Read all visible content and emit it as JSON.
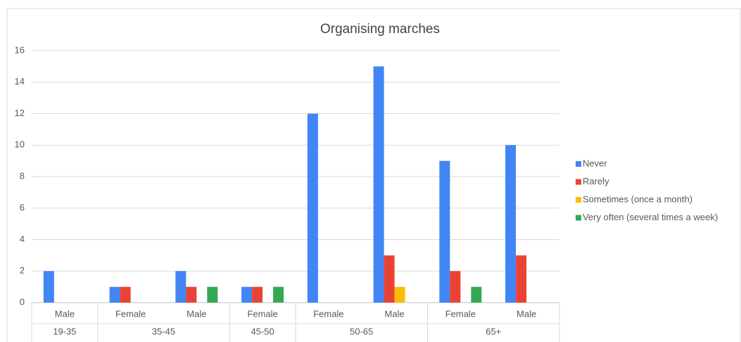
{
  "chart_data": {
    "type": "bar",
    "title": "Organising marches",
    "categories": [
      "Male",
      "Female",
      "Male",
      "Female",
      "Female",
      "Male",
      "Female",
      "Male"
    ],
    "groups": [
      {
        "name": "19-35",
        "count": 1
      },
      {
        "name": "35-45",
        "count": 2
      },
      {
        "name": "45-50",
        "count": 1
      },
      {
        "name": "50-65",
        "count": 2
      },
      {
        "name": "65+",
        "count": 2
      }
    ],
    "series": [
      {
        "name": "Never",
        "color": "#4285f4",
        "values": [
          2,
          1,
          2,
          1,
          12,
          15,
          9,
          10
        ]
      },
      {
        "name": "Rarely",
        "color": "#ea4335",
        "values": [
          0,
          1,
          1,
          1,
          0,
          3,
          2,
          3
        ]
      },
      {
        "name": "Sometimes (once a month)",
        "color": "#fbbc04",
        "values": [
          0,
          0,
          0,
          0,
          0,
          1,
          0,
          0
        ]
      },
      {
        "name": "Very often (several times a week)",
        "color": "#34a853",
        "values": [
          0,
          0,
          1,
          1,
          0,
          0,
          1,
          0
        ]
      }
    ],
    "ylim": [
      0,
      16
    ],
    "yticks": [
      0,
      2,
      4,
      6,
      8,
      10,
      12,
      14,
      16
    ],
    "grid": true,
    "legend": "right"
  }
}
